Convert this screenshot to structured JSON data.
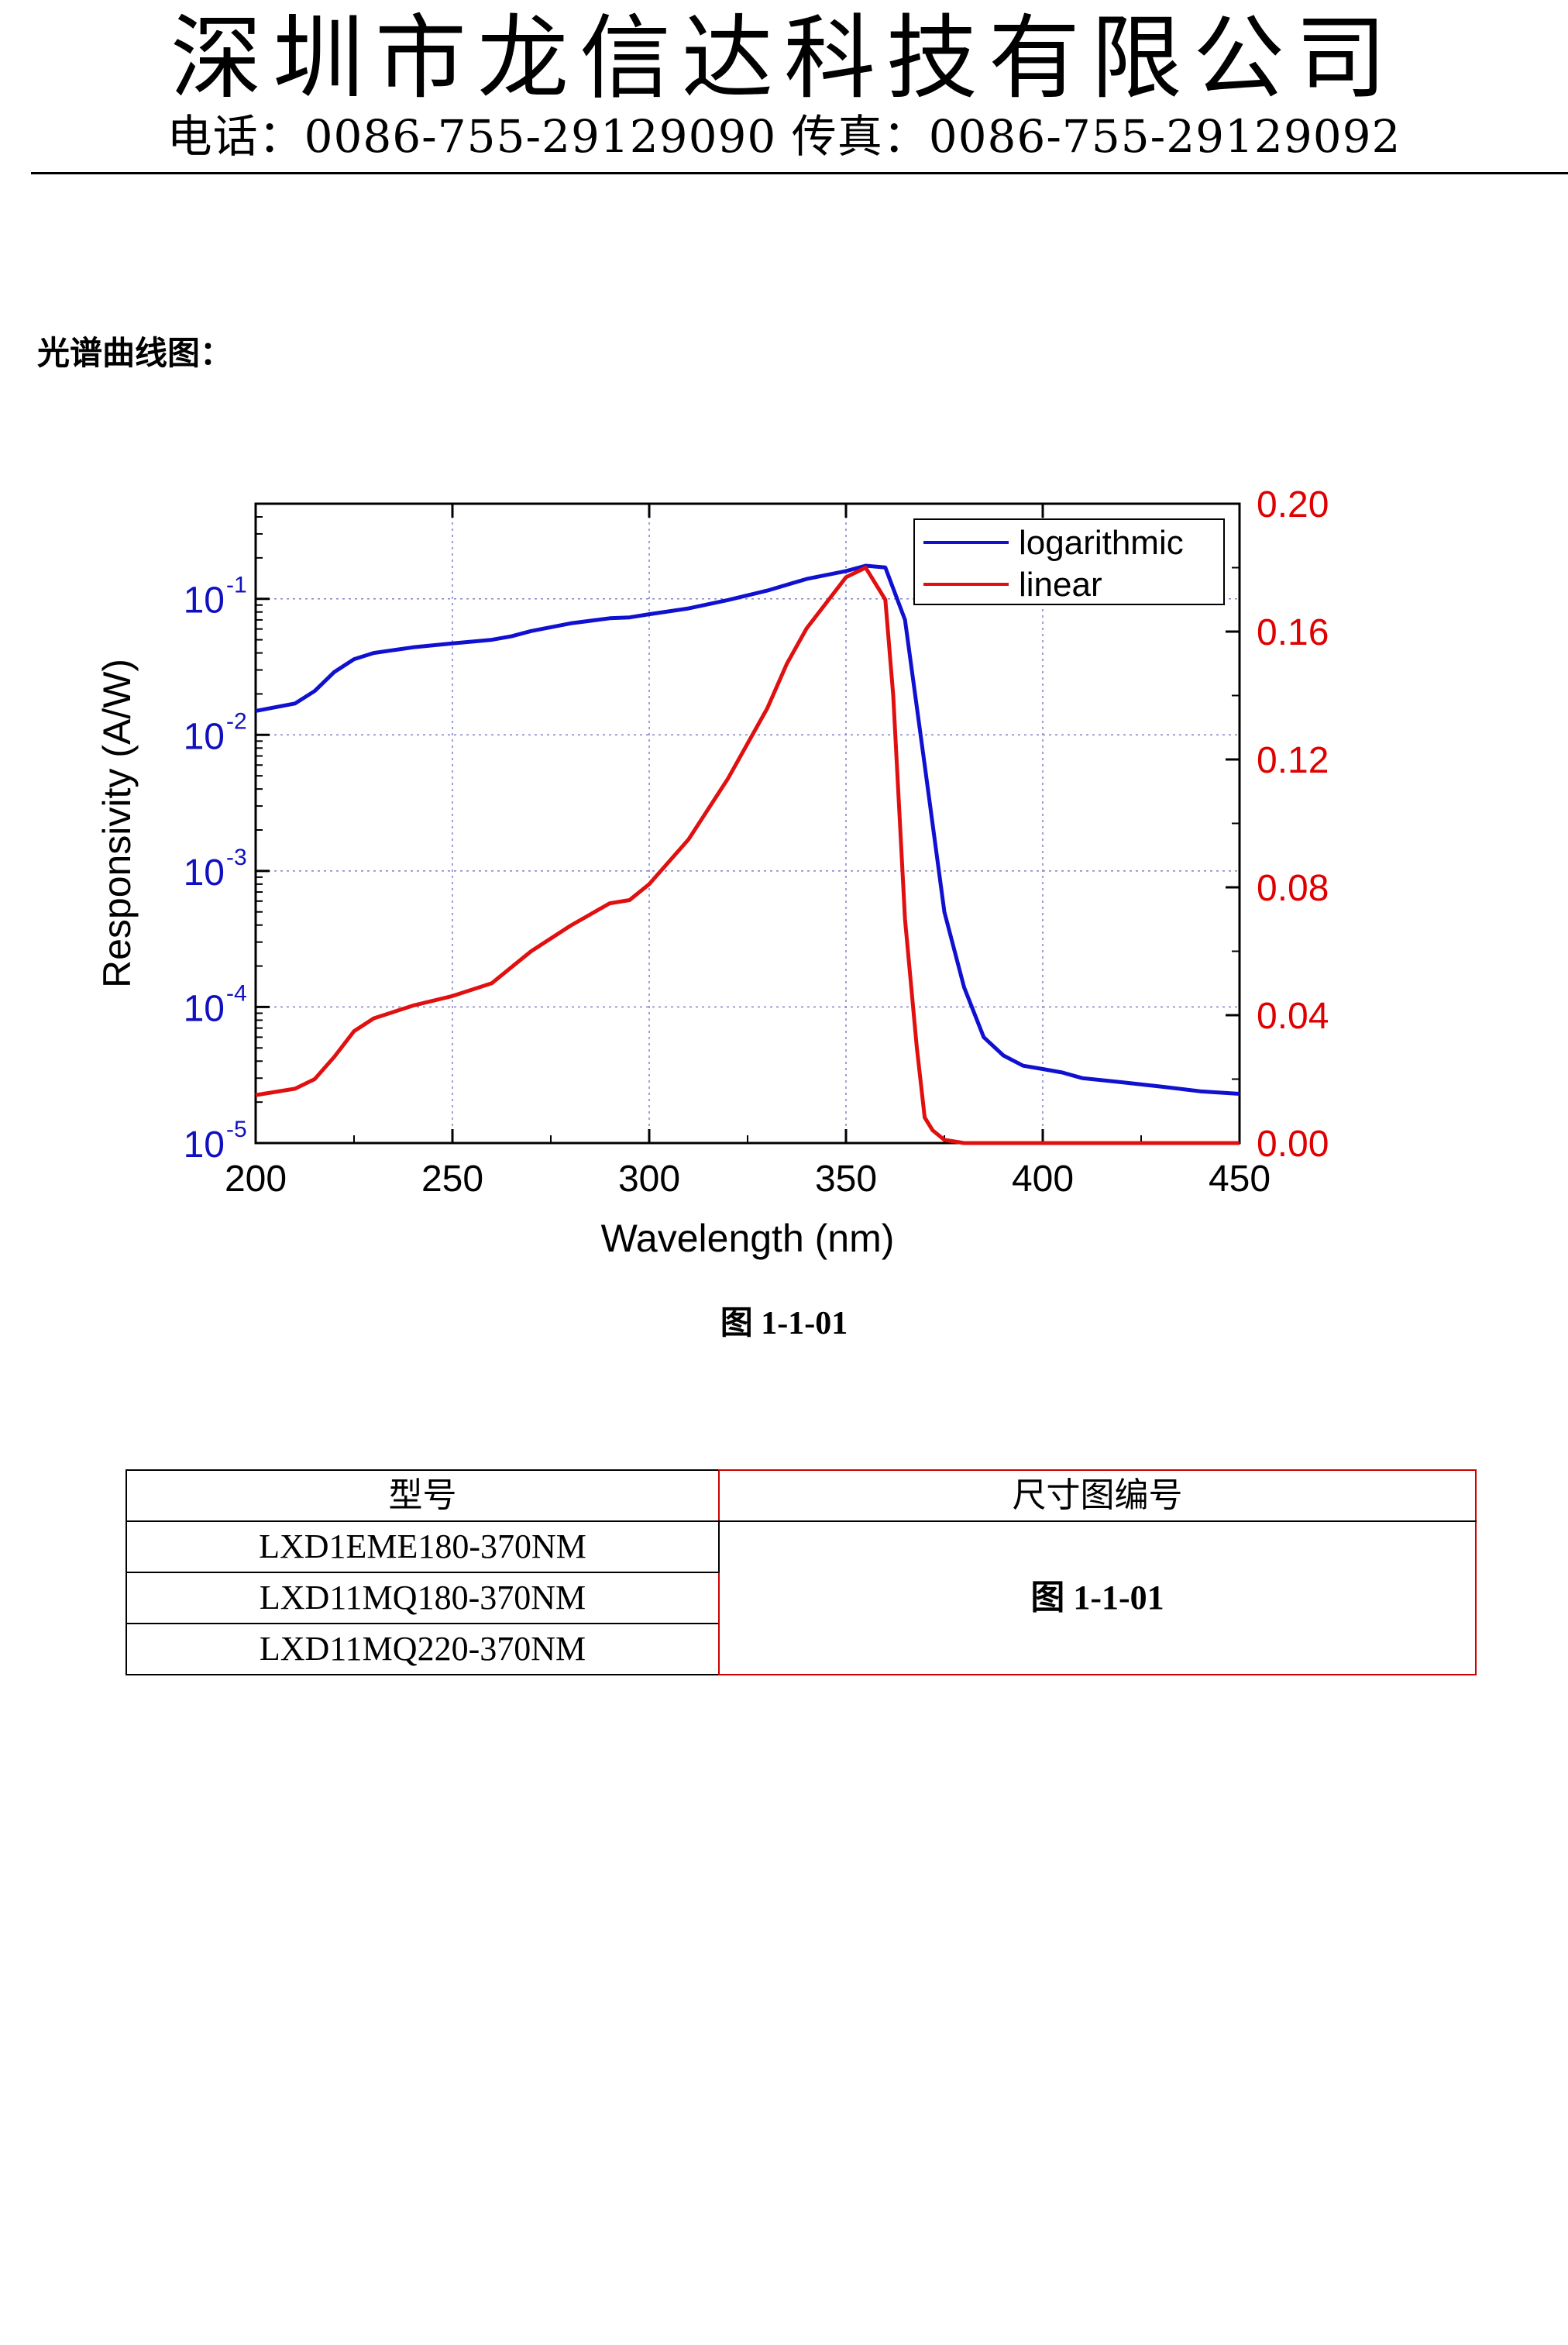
{
  "header": {
    "company": "深圳市龙信达科技有限公司",
    "contact": "电话：0086-755-29129090 传真：0086-755-29129092"
  },
  "section_title": "光谱曲线图：",
  "figure_caption": "图 1-1-01",
  "table": {
    "headers": [
      "型号",
      "尺寸图编号"
    ],
    "models": [
      "LXD1EME180-370NM",
      "LXD11MQ180-370NM",
      "LXD11MQ220-370NM"
    ],
    "figure_ref": "图 1-1-01"
  },
  "chart_data": {
    "type": "line",
    "xlabel": "Wavelength (nm)",
    "ylabel": "Responsivity (A/W)",
    "xlim": [
      200,
      450
    ],
    "x_ticks": [
      200,
      250,
      300,
      350,
      400,
      450
    ],
    "y_left_scale": "log",
    "y_left_lim": [
      1e-05,
      0.5
    ],
    "y_left_ticks": [
      {
        "v": 0.1,
        "base": "10",
        "exp": "-1"
      },
      {
        "v": 0.01,
        "base": "10",
        "exp": "-2"
      },
      {
        "v": 0.001,
        "base": "10",
        "exp": "-3"
      },
      {
        "v": 0.0001,
        "base": "10",
        "exp": "-4"
      },
      {
        "v": 1e-05,
        "base": "10",
        "exp": "-5"
      }
    ],
    "y_right_lim": [
      0,
      0.2
    ],
    "y_right_ticks": [
      "0.00",
      "0.04",
      "0.08",
      "0.12",
      "0.16",
      "0.20"
    ],
    "grid": true,
    "legend_position": "top-right",
    "colors": {
      "logarithmic": "#1010d0",
      "linear": "#e01010",
      "left_axis": "#1010c0",
      "right_axis": "#e00000"
    },
    "series": [
      {
        "name": "logarithmic",
        "axis": "left",
        "x": [
          200,
          210,
          215,
          220,
          225,
          230,
          240,
          250,
          260,
          265,
          270,
          280,
          290,
          295,
          300,
          310,
          320,
          330,
          340,
          350,
          355,
          360,
          365,
          370,
          375,
          380,
          385,
          390,
          395,
          400,
          405,
          410,
          420,
          430,
          440,
          450
        ],
        "y": [
          0.015,
          0.017,
          0.021,
          0.029,
          0.036,
          0.04,
          0.044,
          0.047,
          0.05,
          0.053,
          0.058,
          0.066,
          0.072,
          0.073,
          0.077,
          0.085,
          0.098,
          0.115,
          0.14,
          0.16,
          0.175,
          0.17,
          0.07,
          0.006,
          0.0005,
          0.00014,
          6e-05,
          4.4e-05,
          3.7e-05,
          3.5e-05,
          3.3e-05,
          3e-05,
          2.8e-05,
          2.6e-05,
          2.4e-05,
          2.3e-05
        ]
      },
      {
        "name": "linear",
        "axis": "right",
        "x": [
          200,
          210,
          215,
          220,
          225,
          230,
          240,
          250,
          260,
          265,
          270,
          280,
          290,
          295,
          300,
          310,
          320,
          330,
          335,
          340,
          350,
          355,
          360,
          362,
          365,
          368,
          370,
          372,
          375,
          380,
          400,
          450
        ],
        "y": [
          0.015,
          0.017,
          0.02,
          0.027,
          0.035,
          0.039,
          0.043,
          0.046,
          0.05,
          0.055,
          0.06,
          0.068,
          0.075,
          0.076,
          0.081,
          0.095,
          0.114,
          0.136,
          0.15,
          0.161,
          0.177,
          0.18,
          0.17,
          0.14,
          0.07,
          0.03,
          0.008,
          0.004,
          0.001,
          0.0,
          0.0,
          0.0
        ]
      }
    ]
  }
}
